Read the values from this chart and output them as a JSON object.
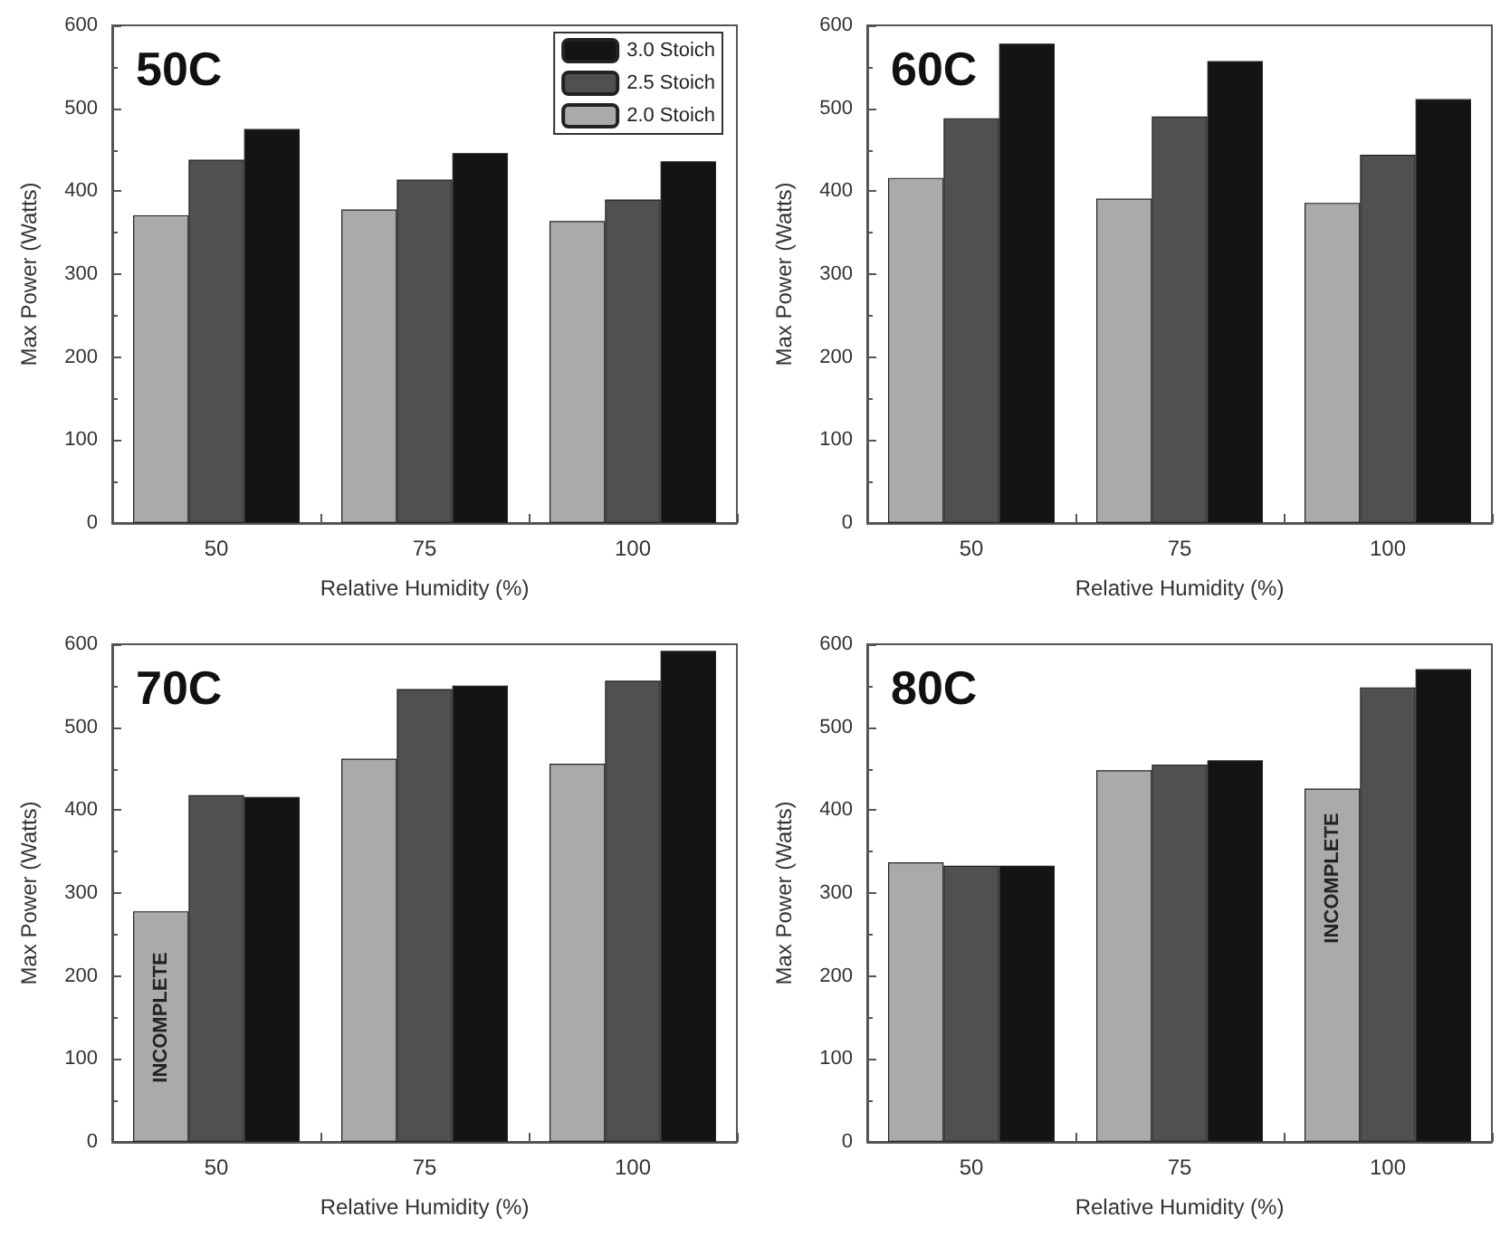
{
  "chart_data": [
    {
      "type": "bar",
      "title": "50C",
      "xlabel": "Relative Humidity (%)",
      "ylabel": "Max Power (Watts)",
      "categories": [
        "50",
        "75",
        "100"
      ],
      "ylim": [
        0,
        600
      ],
      "yticks": [
        0,
        100,
        200,
        300,
        400,
        500,
        600
      ],
      "grid": false,
      "legend": "top right",
      "series": [
        {
          "name": "2.0 Stoich",
          "color": "#a9aba9",
          "values": [
            371,
            378,
            364
          ]
        },
        {
          "name": "2.5 Stoich",
          "color": "#4f514f",
          "values": [
            438,
            414,
            390
          ]
        },
        {
          "name": "3.0 Stoich",
          "color": "#141414",
          "values": [
            475,
            446,
            436
          ]
        }
      ]
    },
    {
      "type": "bar",
      "title": "60C",
      "xlabel": "Relative Humidity (%)",
      "ylabel": "Max Power (Watts)",
      "categories": [
        "50",
        "75",
        "100"
      ],
      "ylim": [
        0,
        600
      ],
      "yticks": [
        0,
        100,
        200,
        300,
        400,
        500,
        600
      ],
      "grid": false,
      "series": [
        {
          "color": "#a9aba9",
          "values": [
            416,
            391,
            386
          ]
        },
        {
          "color": "#4f514f",
          "values": [
            488,
            490,
            444
          ]
        },
        {
          "color": "#141414",
          "values": [
            578,
            557,
            511
          ]
        }
      ]
    },
    {
      "type": "bar",
      "title": "70C",
      "xlabel": "Relative Humidity (%)",
      "ylabel": "Max Power (Watts)",
      "categories": [
        "50",
        "75",
        "100"
      ],
      "ylim": [
        0,
        600
      ],
      "yticks": [
        0,
        100,
        200,
        300,
        400,
        500,
        600
      ],
      "grid": false,
      "annotations": [
        "INCOMPLETE"
      ],
      "series": [
        {
          "color": "#a9aba9",
          "values": [
            278,
            462,
            456
          ]
        },
        {
          "color": "#4f514f",
          "values": [
            418,
            546,
            556
          ]
        },
        {
          "color": "#141414",
          "values": [
            416,
            550,
            592
          ]
        }
      ]
    },
    {
      "type": "bar",
      "title": "80C",
      "xlabel": "Relative Humidity (%)",
      "ylabel": "Max Power (Watts)",
      "categories": [
        "50",
        "75",
        "100"
      ],
      "ylim": [
        0,
        600
      ],
      "yticks": [
        0,
        100,
        200,
        300,
        400,
        500,
        600
      ],
      "grid": false,
      "annotations": [
        "INCOMPLETE"
      ],
      "series": [
        {
          "color": "#a9aba9",
          "values": [
            337,
            448,
            426
          ]
        },
        {
          "color": "#4f514f",
          "values": [
            333,
            455,
            548
          ]
        },
        {
          "color": "#141414",
          "values": [
            333,
            460,
            570
          ]
        }
      ]
    }
  ]
}
